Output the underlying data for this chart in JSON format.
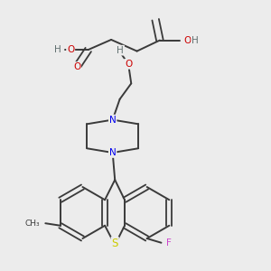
{
  "bg_color": "#ececec",
  "bond_color": "#3a3a3a",
  "atom_colors": {
    "O": "#cc0000",
    "N": "#0000ee",
    "S": "#cccc00",
    "F": "#cc44cc",
    "H": "#607070",
    "C": "#3a3a3a"
  },
  "figsize": [
    3.0,
    3.0
  ],
  "dpi": 100
}
